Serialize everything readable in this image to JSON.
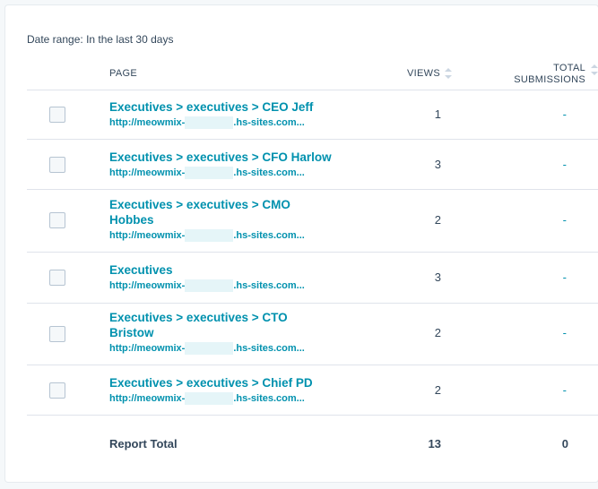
{
  "filter": {
    "label": "Date range:",
    "value": "In the last 30 days"
  },
  "columns": {
    "page": "PAGE",
    "views": "VIEWS",
    "submissions_line1": "TOTAL",
    "submissions_line2": "SUBMISSIONS"
  },
  "rows": [
    {
      "title": "Executives > executives > CEO Jeff",
      "url_prefix": "http://meowmix-",
      "url_suffix": ".hs-sites.com...",
      "views": "1",
      "submissions": "-"
    },
    {
      "title": "Executives > executives > CFO Harlow",
      "url_prefix": "http://meowmix-",
      "url_suffix": ".hs-sites.com...",
      "views": "3",
      "submissions": "-"
    },
    {
      "title": "Executives > executives > CMO Hobbes",
      "url_prefix": "http://meowmix-",
      "url_suffix": ".hs-sites.com...",
      "views": "2",
      "submissions": "-"
    },
    {
      "title": "Executives",
      "url_prefix": "http://meowmix-",
      "url_suffix": ".hs-sites.com...",
      "views": "3",
      "submissions": "-"
    },
    {
      "title": "Executives > executives > CTO Bristow",
      "url_prefix": "http://meowmix-",
      "url_suffix": ".hs-sites.com...",
      "views": "2",
      "submissions": "-"
    },
    {
      "title": "Executives > executives > Chief PD",
      "url_prefix": "http://meowmix-",
      "url_suffix": ".hs-sites.com...",
      "views": "2",
      "submissions": "-"
    }
  ],
  "total": {
    "label": "Report Total",
    "views": "13",
    "submissions": "0"
  },
  "colors": {
    "link": "#0091ae",
    "text": "#33475b",
    "divider": "#dfe3eb",
    "redaction": "#e5f5f8"
  }
}
